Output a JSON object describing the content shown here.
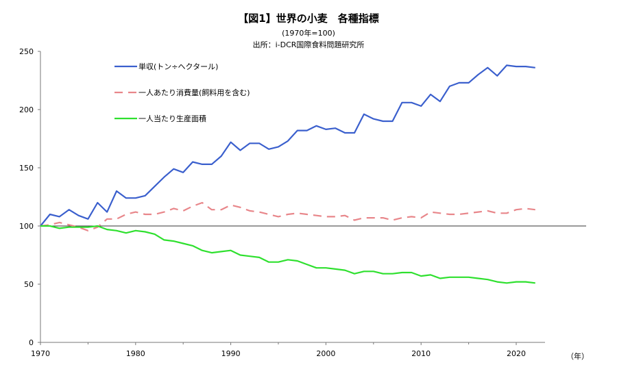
{
  "chart_data": {
    "type": "line",
    "title": "【図1】世界の小麦　各種指標",
    "subtitle": "(1970年=100)",
    "source": "出所：i-DCR国際食料問題研究所",
    "xlabel": "（年）",
    "ylabel": "",
    "xlim": [
      1970,
      2023
    ],
    "ylim": [
      0,
      250
    ],
    "yticks": [
      0,
      50,
      100,
      150,
      200,
      250
    ],
    "xticks": [
      1970,
      1980,
      1990,
      2000,
      2010,
      2020
    ],
    "reference_line": 100,
    "legend_position": "top-left",
    "x": [
      1970,
      1971,
      1972,
      1973,
      1974,
      1975,
      1976,
      1977,
      1978,
      1979,
      1980,
      1981,
      1982,
      1983,
      1984,
      1985,
      1986,
      1987,
      1988,
      1989,
      1990,
      1991,
      1992,
      1993,
      1994,
      1995,
      1996,
      1997,
      1998,
      1999,
      2000,
      2001,
      2002,
      2003,
      2004,
      2005,
      2006,
      2007,
      2008,
      2009,
      2010,
      2011,
      2012,
      2013,
      2014,
      2015,
      2016,
      2017,
      2018,
      2019,
      2020,
      2021,
      2022
    ],
    "series": [
      {
        "name": "単収(トン÷ヘクタール)",
        "color": "#3a5fcd",
        "dash": "none",
        "values": [
          100,
          110,
          108,
          114,
          109,
          106,
          120,
          112,
          130,
          124,
          124,
          126,
          134,
          142,
          149,
          146,
          155,
          153,
          153,
          160,
          172,
          165,
          171,
          171,
          166,
          168,
          173,
          182,
          182,
          186,
          183,
          184,
          180,
          180,
          196,
          192,
          190,
          190,
          206,
          206,
          203,
          213,
          207,
          220,
          223,
          223,
          230,
          236,
          229,
          238,
          237,
          237,
          236
        ]
      },
      {
        "name": "一人あたり消費量(飼料用を含む)",
        "color": "#e8868a",
        "dash": "12 8",
        "values": [
          100,
          101,
          103,
          101,
          99,
          96,
          99,
          106,
          106,
          110,
          112,
          110,
          110,
          112,
          115,
          113,
          117,
          120,
          114,
          114,
          118,
          116,
          113,
          112,
          110,
          108,
          110,
          111,
          110,
          109,
          108,
          108,
          109,
          105,
          107,
          107,
          107,
          105,
          107,
          108,
          107,
          112,
          111,
          110,
          110,
          111,
          112,
          113,
          111,
          111,
          114,
          115,
          114
        ]
      },
      {
        "name": "一人当たり生産面積",
        "color": "#2ee02e",
        "dash": "none",
        "values": [
          100,
          100,
          98,
          99,
          99,
          99,
          100,
          97,
          96,
          94,
          96,
          95,
          93,
          88,
          87,
          85,
          83,
          79,
          77,
          78,
          79,
          75,
          74,
          73,
          69,
          69,
          71,
          70,
          67,
          64,
          64,
          63,
          62,
          59,
          61,
          61,
          59,
          59,
          60,
          60,
          57,
          58,
          55,
          56,
          56,
          56,
          55,
          54,
          52,
          51,
          52,
          52,
          51
        ]
      }
    ]
  }
}
